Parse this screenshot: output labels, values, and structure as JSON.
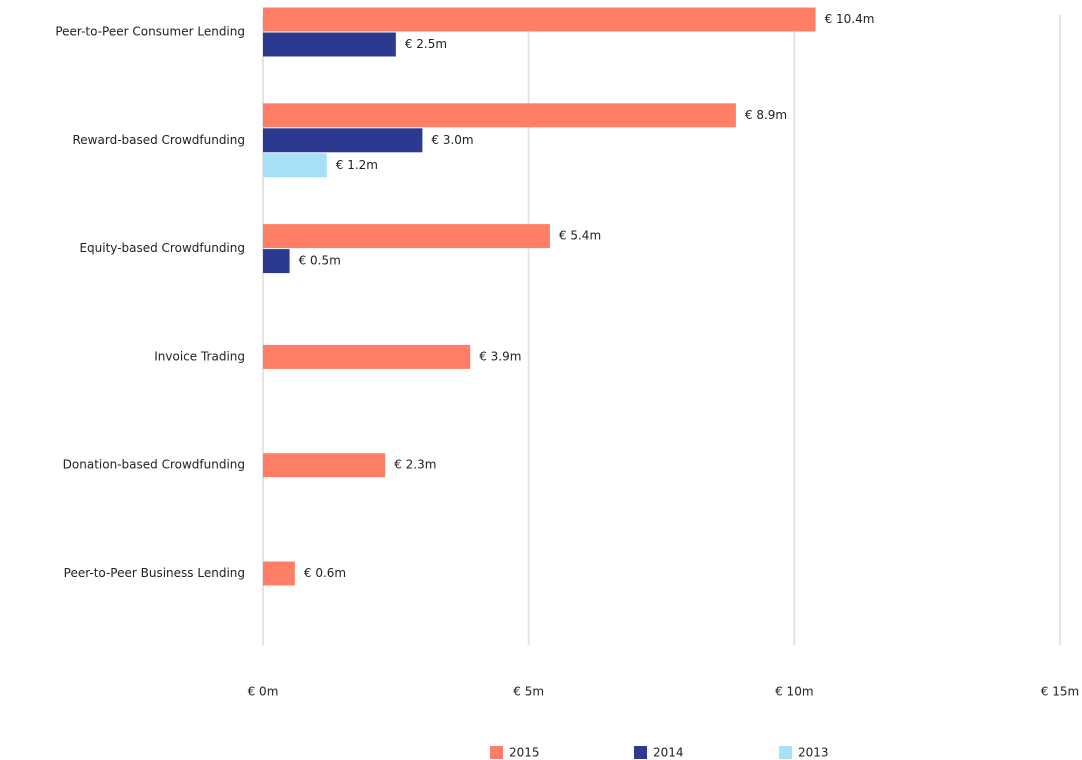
{
  "chart_data": {
    "type": "bar",
    "orientation": "horizontal",
    "categories": [
      "Peer-to-Peer Consumer Lending",
      "Reward-based Crowdfunding",
      "Equity-based Crowdfunding",
      "Invoice Trading",
      "Donation-based Crowdfunding",
      "Peer-to-Peer Business Lending"
    ],
    "series": [
      {
        "name": "2015",
        "color": "#ff7f66",
        "values": [
          10.4,
          8.9,
          5.4,
          3.9,
          2.3,
          0.6
        ],
        "value_labels": [
          "€ 10.4m",
          "€ 8.9m",
          "€ 5.4m",
          "€ 3.9m",
          "€ 2.3m",
          "€ 0.6m"
        ]
      },
      {
        "name": "2014",
        "color": "#2b3990",
        "values": [
          2.5,
          3.0,
          0.5,
          null,
          null,
          null
        ],
        "value_labels": [
          "€ 2.5m",
          "€ 3.0m",
          "€ 0.5m",
          null,
          null,
          null
        ]
      },
      {
        "name": "2013",
        "color": "#a6e1f7",
        "values": [
          null,
          1.2,
          null,
          null,
          null,
          null
        ],
        "value_labels": [
          null,
          "€ 1.2m",
          null,
          null,
          null,
          null
        ]
      }
    ],
    "xlim": [
      0,
      15
    ],
    "xticks": [
      {
        "value": 0,
        "label": "€ 0m"
      },
      {
        "value": 5,
        "label": "€ 5m"
      },
      {
        "value": 10,
        "label": "€ 10m"
      },
      {
        "value": 15,
        "label": "€ 15m"
      }
    ],
    "grid": true,
    "legend": "bottom"
  }
}
